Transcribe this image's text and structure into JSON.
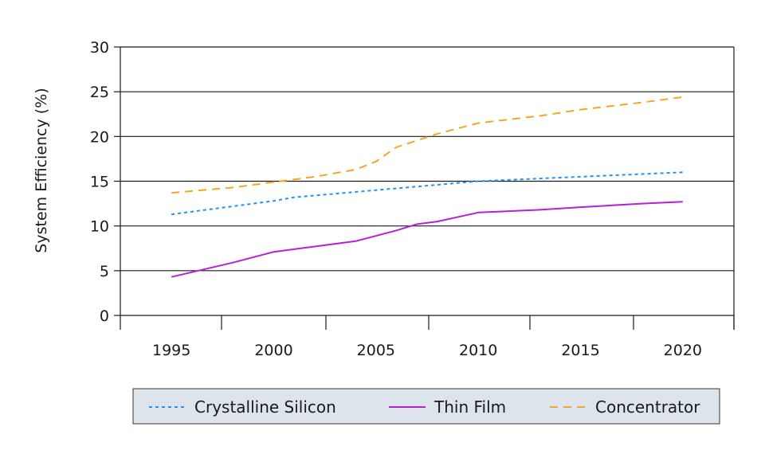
{
  "chart_data": {
    "type": "line",
    "title": "",
    "xlabel": "",
    "ylabel": "System Efficiency (%)",
    "x_ticks": [
      "1995",
      "2000",
      "2005",
      "2010",
      "2015",
      "2020"
    ],
    "y_ticks": [
      "0",
      "5",
      "10",
      "15",
      "20",
      "25",
      "30"
    ],
    "xlim": [
      1992.5,
      2022.5
    ],
    "ylim": [
      0,
      30
    ],
    "grid": "horizontal",
    "legend": "bottom",
    "series": [
      {
        "name": "Crystalline Silicon",
        "color": "#1e90ff",
        "style": "dotted",
        "x": [
          1995,
          1998,
          2000,
          2001,
          2003,
          2005,
          2008,
          2010,
          2013,
          2015,
          2018,
          2020
        ],
        "y": [
          11.3,
          12.2,
          12.8,
          13.2,
          13.6,
          14.0,
          14.6,
          15.0,
          15.3,
          15.5,
          15.8,
          16.0
        ]
      },
      {
        "name": "Thin Film",
        "color": "#b620d8",
        "style": "solid",
        "x": [
          1995,
          1998,
          2000,
          2002,
          2004,
          2006,
          2007,
          2008,
          2010,
          2013,
          2015,
          2018,
          2020
        ],
        "y": [
          4.3,
          5.9,
          7.1,
          7.7,
          8.3,
          9.5,
          10.2,
          10.5,
          11.5,
          11.8,
          12.1,
          12.5,
          12.7
        ]
      },
      {
        "name": "Concentrator",
        "color": "#f5a623",
        "style": "dashed",
        "x": [
          1995,
          1998,
          2000,
          2002,
          2004,
          2005,
          2006,
          2008,
          2010,
          2013,
          2015,
          2018,
          2020
        ],
        "y": [
          13.7,
          14.3,
          14.9,
          15.5,
          16.3,
          17.2,
          18.8,
          20.3,
          21.5,
          22.3,
          23.0,
          23.8,
          24.4
        ]
      }
    ]
  }
}
